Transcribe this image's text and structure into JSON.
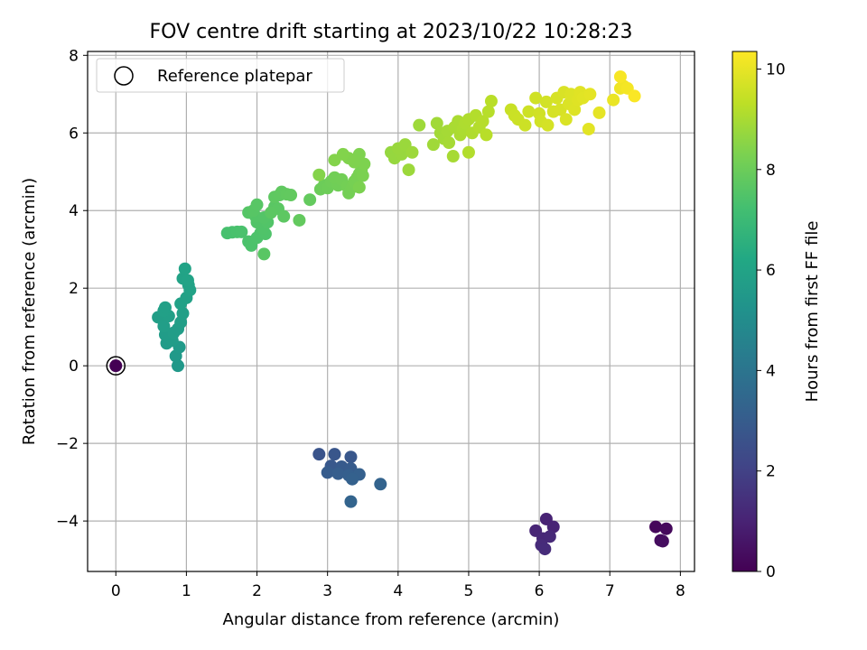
{
  "chart_data": {
    "type": "scatter",
    "title": "FOV centre drift starting at 2023/10/22 10:28:23",
    "xlabel": "Angular distance from reference (arcmin)",
    "ylabel": "Rotation from reference (arcmin)",
    "xlim": [
      -0.4,
      8.2
    ],
    "ylim": [
      -5.3,
      8.1
    ],
    "xticks": [
      0,
      1,
      2,
      3,
      4,
      5,
      6,
      7,
      8
    ],
    "yticks": [
      -4,
      -2,
      0,
      2,
      4,
      6,
      8
    ],
    "grid": true,
    "legend": {
      "placement": "top-left",
      "entries": [
        "Reference platepar"
      ]
    },
    "colorbar": {
      "label": "Hours from first FF file",
      "colormap": "viridis",
      "range": [
        0,
        10.35
      ],
      "ticks": [
        0,
        2,
        4,
        6,
        8,
        10
      ]
    },
    "reference_point": {
      "x": 0,
      "y": 0
    },
    "points": [
      {
        "x": 0,
        "y": 0,
        "c": 0
      },
      {
        "x": 7.65,
        "y": -4.15,
        "c": 0.2
      },
      {
        "x": 7.8,
        "y": -4.2,
        "c": 0.25
      },
      {
        "x": 7.72,
        "y": -4.5,
        "c": 0.3
      },
      {
        "x": 7.75,
        "y": -4.52,
        "c": 0.35
      },
      {
        "x": 6.1,
        "y": -3.95,
        "c": 1.0
      },
      {
        "x": 6.2,
        "y": -4.15,
        "c": 1.05
      },
      {
        "x": 5.95,
        "y": -4.25,
        "c": 1.1
      },
      {
        "x": 6.05,
        "y": -4.45,
        "c": 1.15
      },
      {
        "x": 6.15,
        "y": -4.4,
        "c": 1.2
      },
      {
        "x": 6.03,
        "y": -4.62,
        "c": 1.25
      },
      {
        "x": 6.08,
        "y": -4.72,
        "c": 1.3
      },
      {
        "x": 2.88,
        "y": -2.28,
        "c": 2.7
      },
      {
        "x": 3.1,
        "y": -2.28,
        "c": 2.75
      },
      {
        "x": 3.33,
        "y": -2.35,
        "c": 2.8
      },
      {
        "x": 3.05,
        "y": -2.58,
        "c": 2.85
      },
      {
        "x": 3.2,
        "y": -2.6,
        "c": 2.9
      },
      {
        "x": 3.33,
        "y": -2.65,
        "c": 2.95
      },
      {
        "x": 3.0,
        "y": -2.75,
        "c": 3.0
      },
      {
        "x": 3.15,
        "y": -2.78,
        "c": 3.05
      },
      {
        "x": 3.3,
        "y": -2.82,
        "c": 3.1
      },
      {
        "x": 3.45,
        "y": -2.8,
        "c": 3.15
      },
      {
        "x": 3.35,
        "y": -2.92,
        "c": 3.2
      },
      {
        "x": 3.75,
        "y": -3.05,
        "c": 3.25
      },
      {
        "x": 3.33,
        "y": -3.5,
        "c": 3.3
      },
      {
        "x": 0.88,
        "y": 0.0,
        "c": 5.5
      },
      {
        "x": 0.85,
        "y": 0.25,
        "c": 5.55
      },
      {
        "x": 0.9,
        "y": 0.48,
        "c": 5.6
      },
      {
        "x": 0.72,
        "y": 0.58,
        "c": 5.62
      },
      {
        "x": 0.8,
        "y": 0.65,
        "c": 5.65
      },
      {
        "x": 0.7,
        "y": 0.8,
        "c": 5.68
      },
      {
        "x": 0.82,
        "y": 0.85,
        "c": 5.7
      },
      {
        "x": 0.88,
        "y": 0.95,
        "c": 5.72
      },
      {
        "x": 0.68,
        "y": 1.02,
        "c": 5.74
      },
      {
        "x": 0.92,
        "y": 1.12,
        "c": 5.76
      },
      {
        "x": 0.6,
        "y": 1.25,
        "c": 5.78
      },
      {
        "x": 0.75,
        "y": 1.28,
        "c": 5.8
      },
      {
        "x": 0.95,
        "y": 1.35,
        "c": 5.82
      },
      {
        "x": 0.68,
        "y": 1.42,
        "c": 5.84
      },
      {
        "x": 0.7,
        "y": 1.5,
        "c": 5.86
      },
      {
        "x": 0.92,
        "y": 1.6,
        "c": 5.88
      },
      {
        "x": 1.0,
        "y": 1.75,
        "c": 5.9
      },
      {
        "x": 1.05,
        "y": 1.95,
        "c": 5.92
      },
      {
        "x": 1.03,
        "y": 2.08,
        "c": 5.94
      },
      {
        "x": 0.95,
        "y": 2.25,
        "c": 5.96
      },
      {
        "x": 1.02,
        "y": 2.2,
        "c": 5.98
      },
      {
        "x": 0.98,
        "y": 2.5,
        "c": 6.0
      },
      {
        "x": 1.58,
        "y": 3.42,
        "c": 7.3
      },
      {
        "x": 1.65,
        "y": 3.44,
        "c": 7.32
      },
      {
        "x": 1.72,
        "y": 3.45,
        "c": 7.34
      },
      {
        "x": 1.78,
        "y": 3.45,
        "c": 7.36
      },
      {
        "x": 1.88,
        "y": 3.2,
        "c": 7.38
      },
      {
        "x": 1.92,
        "y": 3.1,
        "c": 7.4
      },
      {
        "x": 2.0,
        "y": 3.3,
        "c": 7.42
      },
      {
        "x": 2.05,
        "y": 3.42,
        "c": 7.44
      },
      {
        "x": 2.12,
        "y": 3.4,
        "c": 7.46
      },
      {
        "x": 2.08,
        "y": 3.55,
        "c": 7.48
      },
      {
        "x": 2.0,
        "y": 3.7,
        "c": 7.5
      },
      {
        "x": 2.15,
        "y": 3.7,
        "c": 7.52
      },
      {
        "x": 1.98,
        "y": 3.85,
        "c": 7.54
      },
      {
        "x": 2.1,
        "y": 3.82,
        "c": 7.56
      },
      {
        "x": 1.88,
        "y": 3.95,
        "c": 7.58
      },
      {
        "x": 1.95,
        "y": 4.0,
        "c": 7.6
      },
      {
        "x": 2.0,
        "y": 4.15,
        "c": 7.62
      },
      {
        "x": 2.1,
        "y": 2.88,
        "c": 7.64
      },
      {
        "x": 2.25,
        "y": 4.1,
        "c": 7.66
      },
      {
        "x": 2.3,
        "y": 4.05,
        "c": 7.68
      },
      {
        "x": 2.2,
        "y": 3.95,
        "c": 7.7
      },
      {
        "x": 2.38,
        "y": 3.85,
        "c": 7.72
      },
      {
        "x": 2.25,
        "y": 4.35,
        "c": 7.74
      },
      {
        "x": 2.32,
        "y": 4.4,
        "c": 7.76
      },
      {
        "x": 2.35,
        "y": 4.48,
        "c": 7.78
      },
      {
        "x": 2.42,
        "y": 4.42,
        "c": 7.8
      },
      {
        "x": 2.48,
        "y": 4.4,
        "c": 7.82
      },
      {
        "x": 2.6,
        "y": 3.75,
        "c": 7.84
      },
      {
        "x": 2.75,
        "y": 4.28,
        "c": 7.86
      },
      {
        "x": 2.9,
        "y": 4.55,
        "c": 8.0
      },
      {
        "x": 2.95,
        "y": 4.65,
        "c": 8.02
      },
      {
        "x": 3.0,
        "y": 4.58,
        "c": 8.04
      },
      {
        "x": 3.05,
        "y": 4.75,
        "c": 8.06
      },
      {
        "x": 3.15,
        "y": 4.65,
        "c": 8.08
      },
      {
        "x": 3.1,
        "y": 4.85,
        "c": 8.1
      },
      {
        "x": 3.2,
        "y": 4.8,
        "c": 8.12
      },
      {
        "x": 3.28,
        "y": 4.62,
        "c": 8.14
      },
      {
        "x": 3.3,
        "y": 4.45,
        "c": 8.16
      },
      {
        "x": 3.35,
        "y": 4.6,
        "c": 8.18
      },
      {
        "x": 3.38,
        "y": 4.75,
        "c": 8.2
      },
      {
        "x": 3.42,
        "y": 4.85,
        "c": 8.22
      },
      {
        "x": 3.45,
        "y": 4.95,
        "c": 8.24
      },
      {
        "x": 3.48,
        "y": 5.05,
        "c": 8.26
      },
      {
        "x": 3.5,
        "y": 4.9,
        "c": 8.28
      },
      {
        "x": 3.45,
        "y": 4.6,
        "c": 8.3
      },
      {
        "x": 3.52,
        "y": 5.2,
        "c": 8.32
      },
      {
        "x": 3.45,
        "y": 5.45,
        "c": 8.34
      },
      {
        "x": 3.38,
        "y": 5.25,
        "c": 8.36
      },
      {
        "x": 3.3,
        "y": 5.35,
        "c": 8.38
      },
      {
        "x": 3.22,
        "y": 5.45,
        "c": 8.4
      },
      {
        "x": 3.1,
        "y": 5.3,
        "c": 8.42
      },
      {
        "x": 2.88,
        "y": 4.92,
        "c": 8.44
      },
      {
        "x": 3.9,
        "y": 5.5,
        "c": 8.7
      },
      {
        "x": 3.95,
        "y": 5.35,
        "c": 8.72
      },
      {
        "x": 4.05,
        "y": 5.45,
        "c": 8.74
      },
      {
        "x": 4.0,
        "y": 5.6,
        "c": 8.76
      },
      {
        "x": 4.1,
        "y": 5.7,
        "c": 8.78
      },
      {
        "x": 4.15,
        "y": 5.05,
        "c": 8.8
      },
      {
        "x": 4.2,
        "y": 5.5,
        "c": 8.82
      },
      {
        "x": 4.3,
        "y": 6.2,
        "c": 8.84
      },
      {
        "x": 4.5,
        "y": 5.7,
        "c": 8.86
      },
      {
        "x": 4.55,
        "y": 6.25,
        "c": 8.88
      },
      {
        "x": 4.6,
        "y": 6.0,
        "c": 8.9
      },
      {
        "x": 4.65,
        "y": 5.85,
        "c": 8.92
      },
      {
        "x": 4.7,
        "y": 6.05,
        "c": 8.94
      },
      {
        "x": 4.72,
        "y": 5.75,
        "c": 8.96
      },
      {
        "x": 4.78,
        "y": 5.4,
        "c": 8.98
      },
      {
        "x": 4.8,
        "y": 6.15,
        "c": 9.0
      },
      {
        "x": 4.85,
        "y": 6.3,
        "c": 9.02
      },
      {
        "x": 4.88,
        "y": 5.95,
        "c": 9.04
      },
      {
        "x": 4.92,
        "y": 6.1,
        "c": 9.06
      },
      {
        "x": 4.95,
        "y": 6.25,
        "c": 9.08
      },
      {
        "x": 5.0,
        "y": 6.35,
        "c": 9.1
      },
      {
        "x": 5.05,
        "y": 6.0,
        "c": 9.12
      },
      {
        "x": 5.0,
        "y": 5.5,
        "c": 9.14
      },
      {
        "x": 5.1,
        "y": 6.45,
        "c": 9.16
      },
      {
        "x": 5.15,
        "y": 6.15,
        "c": 9.18
      },
      {
        "x": 5.2,
        "y": 6.3,
        "c": 9.2
      },
      {
        "x": 5.28,
        "y": 6.55,
        "c": 9.22
      },
      {
        "x": 5.25,
        "y": 5.95,
        "c": 9.24
      },
      {
        "x": 5.32,
        "y": 6.82,
        "c": 9.26
      },
      {
        "x": 5.6,
        "y": 6.6,
        "c": 9.5
      },
      {
        "x": 5.65,
        "y": 6.45,
        "c": 9.52
      },
      {
        "x": 5.7,
        "y": 6.35,
        "c": 9.54
      },
      {
        "x": 5.8,
        "y": 6.2,
        "c": 9.56
      },
      {
        "x": 5.85,
        "y": 6.55,
        "c": 9.58
      },
      {
        "x": 5.95,
        "y": 6.9,
        "c": 9.6
      },
      {
        "x": 6.0,
        "y": 6.5,
        "c": 9.62
      },
      {
        "x": 6.02,
        "y": 6.3,
        "c": 9.64
      },
      {
        "x": 6.1,
        "y": 6.8,
        "c": 9.66
      },
      {
        "x": 6.12,
        "y": 6.2,
        "c": 9.68
      },
      {
        "x": 6.2,
        "y": 6.55,
        "c": 9.7
      },
      {
        "x": 6.25,
        "y": 6.9,
        "c": 9.72
      },
      {
        "x": 6.3,
        "y": 6.6,
        "c": 9.74
      },
      {
        "x": 6.35,
        "y": 7.05,
        "c": 9.76
      },
      {
        "x": 6.38,
        "y": 6.35,
        "c": 9.78
      },
      {
        "x": 6.42,
        "y": 6.75,
        "c": 9.8
      },
      {
        "x": 6.45,
        "y": 7.0,
        "c": 9.82
      },
      {
        "x": 6.5,
        "y": 6.6,
        "c": 9.84
      },
      {
        "x": 6.55,
        "y": 6.85,
        "c": 9.86
      },
      {
        "x": 6.58,
        "y": 7.05,
        "c": 9.88
      },
      {
        "x": 6.62,
        "y": 6.9,
        "c": 9.9
      },
      {
        "x": 6.7,
        "y": 6.1,
        "c": 9.92
      },
      {
        "x": 6.72,
        "y": 7.0,
        "c": 9.94
      },
      {
        "x": 6.85,
        "y": 6.52,
        "c": 9.96
      },
      {
        "x": 7.05,
        "y": 6.85,
        "c": 10.05
      },
      {
        "x": 7.15,
        "y": 7.15,
        "c": 10.1
      },
      {
        "x": 7.2,
        "y": 7.2,
        "c": 10.15
      },
      {
        "x": 7.25,
        "y": 7.15,
        "c": 10.2
      },
      {
        "x": 7.15,
        "y": 7.45,
        "c": 10.25
      },
      {
        "x": 7.35,
        "y": 6.95,
        "c": 10.3
      }
    ]
  }
}
